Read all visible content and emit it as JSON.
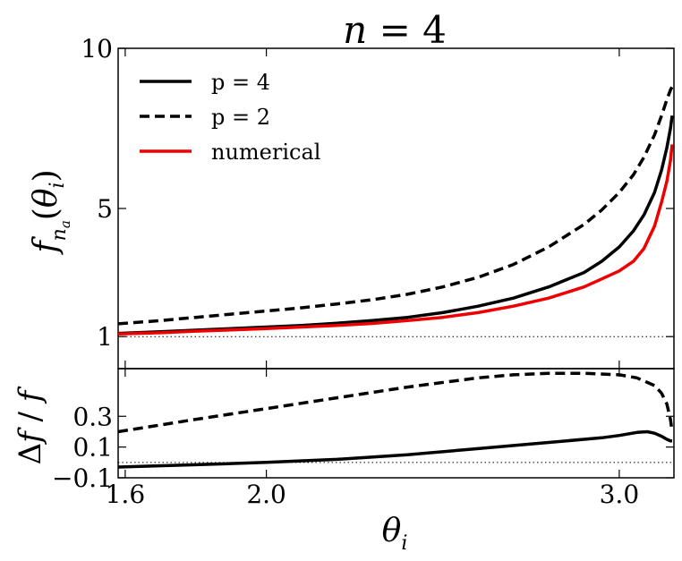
{
  "chart_data": [
    {
      "type": "line",
      "title": "n = 4",
      "ylabel": "f_{n_a}(θ_i)",
      "xlim": [
        1.58,
        3.155
      ],
      "ylim": [
        0.0,
        10.0
      ],
      "yticks": [
        1,
        5,
        10
      ],
      "ytick_labels": [
        "1",
        "5",
        "10"
      ],
      "reference_line": {
        "y": 1,
        "style": "dotted"
      },
      "legend": {
        "position": "top-left",
        "entries": [
          "p = 4",
          "p = 2",
          "numerical"
        ]
      },
      "series": [
        {
          "name": "p = 4",
          "style": "solid",
          "color": "#000000",
          "x": [
            1.58,
            1.7,
            1.8,
            1.9,
            2.0,
            2.1,
            2.2,
            2.3,
            2.4,
            2.5,
            2.6,
            2.7,
            2.8,
            2.9,
            2.95,
            3.0,
            3.04,
            3.07,
            3.1,
            3.12,
            3.135,
            3.145,
            3.15
          ],
          "y": [
            1.1,
            1.15,
            1.2,
            1.25,
            1.3,
            1.35,
            1.42,
            1.5,
            1.6,
            1.75,
            1.95,
            2.2,
            2.55,
            3.0,
            3.35,
            3.8,
            4.3,
            4.8,
            5.5,
            6.2,
            6.9,
            7.5,
            7.9
          ]
        },
        {
          "name": "p = 2",
          "style": "dashed",
          "color": "#000000",
          "x": [
            1.58,
            1.7,
            1.8,
            1.9,
            2.0,
            2.1,
            2.2,
            2.3,
            2.4,
            2.5,
            2.6,
            2.7,
            2.8,
            2.9,
            2.95,
            3.0,
            3.04,
            3.07,
            3.1,
            3.12,
            3.135,
            3.145,
            3.15
          ],
          "y": [
            1.4,
            1.5,
            1.6,
            1.7,
            1.8,
            1.9,
            2.02,
            2.15,
            2.32,
            2.55,
            2.85,
            3.25,
            3.8,
            4.5,
            4.95,
            5.5,
            6.05,
            6.6,
            7.3,
            7.9,
            8.4,
            8.7,
            8.8
          ]
        },
        {
          "name": "numerical",
          "style": "solid",
          "color": "#ee0000",
          "x": [
            1.58,
            1.7,
            1.8,
            1.9,
            2.0,
            2.1,
            2.2,
            2.3,
            2.4,
            2.5,
            2.6,
            2.7,
            2.8,
            2.9,
            2.95,
            3.0,
            3.04,
            3.07,
            3.1,
            3.12,
            3.135,
            3.145,
            3.15
          ],
          "y": [
            1.08,
            1.12,
            1.17,
            1.21,
            1.25,
            1.3,
            1.35,
            1.41,
            1.5,
            1.6,
            1.75,
            1.95,
            2.2,
            2.55,
            2.8,
            3.05,
            3.35,
            3.75,
            4.45,
            5.2,
            5.85,
            6.5,
            7.0
          ]
        }
      ]
    },
    {
      "type": "line",
      "ylabel": "Δf / f",
      "xlabel": "θ_i",
      "xlim": [
        1.58,
        3.155
      ],
      "ylim": [
        -0.1,
        0.61
      ],
      "xticks": [
        1.6,
        2.0,
        3.0
      ],
      "xtick_labels": [
        "1.6",
        "2.0",
        "3.0"
      ],
      "yticks": [
        -0.1,
        0.1,
        0.3
      ],
      "ytick_labels": [
        "−0.1",
        "0.1",
        "0.3"
      ],
      "reference_line": {
        "y": 0,
        "style": "dotted"
      },
      "series": [
        {
          "name": "p = 4",
          "style": "solid",
          "color": "#000000",
          "x": [
            1.58,
            1.8,
            2.0,
            2.2,
            2.4,
            2.6,
            2.8,
            2.95,
            3.0,
            3.05,
            3.08,
            3.1,
            3.12,
            3.135,
            3.145,
            3.15
          ],
          "y": [
            -0.03,
            -0.015,
            0.0,
            0.02,
            0.05,
            0.09,
            0.13,
            0.16,
            0.175,
            0.195,
            0.2,
            0.19,
            0.17,
            0.15,
            0.14,
            0.14
          ]
        },
        {
          "name": "p = 2",
          "style": "dashed",
          "color": "#000000",
          "x": [
            1.58,
            1.8,
            2.0,
            2.2,
            2.4,
            2.6,
            2.7,
            2.8,
            2.9,
            3.0,
            3.05,
            3.1,
            3.12,
            3.135,
            3.145,
            3.15
          ],
          "y": [
            0.2,
            0.28,
            0.35,
            0.42,
            0.49,
            0.55,
            0.57,
            0.58,
            0.58,
            0.57,
            0.55,
            0.5,
            0.45,
            0.38,
            0.28,
            0.2
          ]
        }
      ]
    }
  ]
}
